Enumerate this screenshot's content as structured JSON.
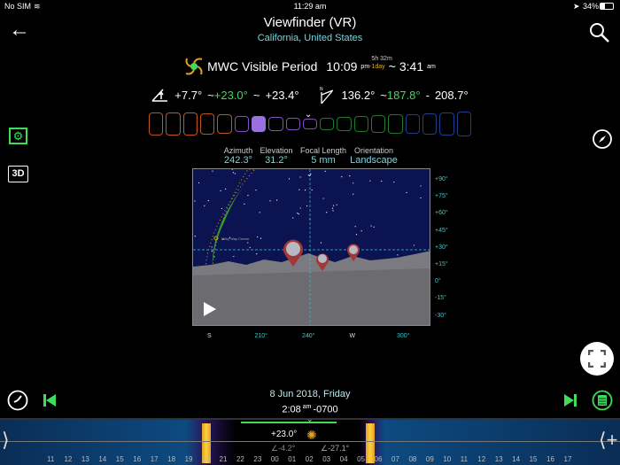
{
  "status": {
    "carrier": "No SIM",
    "time": "11:29 am",
    "battery": "34%"
  },
  "header": {
    "title": "Viewfinder (VR)",
    "subtitle": "California, United States"
  },
  "mwc": {
    "label": "MWC Visible Period",
    "start": "10:09",
    "start_suffix": "pm",
    "day_offset": "-1day",
    "duration": "5h 32m",
    "sep": "~",
    "end": "3:41",
    "end_suffix": "am"
  },
  "elevation": {
    "min": "+7.7°",
    "sep1": "~",
    "peak": "+23.0°",
    "sep2": "~",
    "max": "+23.4°"
  },
  "azimuth_range": {
    "min": "136.2°",
    "sep1": "~",
    "peak": "187.8°",
    "sep2": "-",
    "max": "208.7°"
  },
  "phases": {
    "colors": [
      "#c0561c",
      "#c0561c",
      "#c0561c",
      "#c0561c",
      "#c0561c",
      "#7d4fbf",
      "#9a6fe0",
      "#7d4fbf",
      "#7d4fbf",
      "#7d4fbf",
      "#1f7a2a",
      "#1f7a2a",
      "#1f7a2a",
      "#1f7a2a",
      "#1f7a2a",
      "#1e3f8a",
      "#1e3f8a",
      "#1e3f8a",
      "#1e3f8a"
    ],
    "selected_index": 6
  },
  "view": {
    "azimuth_label": "Azimuth",
    "azimuth": "242.3°",
    "elevation_label": "Elevation",
    "elevation": "31.2°",
    "focal_label": "Focal Length",
    "focal": "5 mm",
    "orientation_label": "Orientation",
    "orientation": "Landscape"
  },
  "viewport": {
    "mw_center_label": "Milky Way Centre",
    "elev_ticks": [
      "+90°",
      "+75°",
      "+60°",
      "+45°",
      "+30°",
      "+15°",
      "0°",
      "-15°",
      "-30°"
    ],
    "az_ticks": [
      "S",
      "210°",
      "240°",
      "W",
      "300°"
    ]
  },
  "bottom": {
    "date": "8 Jun 2018, Friday",
    "time": "2:08",
    "time_suffix": "am",
    "tz": "-0700"
  },
  "timeline": {
    "hours": [
      "11",
      "12",
      "13",
      "14",
      "15",
      "16",
      "17",
      "18",
      "19",
      "20",
      "21",
      "22",
      "23",
      "00",
      "01",
      "02",
      "03",
      "04",
      "05",
      "06",
      "07",
      "08",
      "09",
      "10",
      "11",
      "12",
      "13",
      "14",
      "15",
      "16",
      "17"
    ],
    "elevation": "+23.0°",
    "angle1": "∠-4.2°",
    "angle2": "∠-27.1°"
  }
}
